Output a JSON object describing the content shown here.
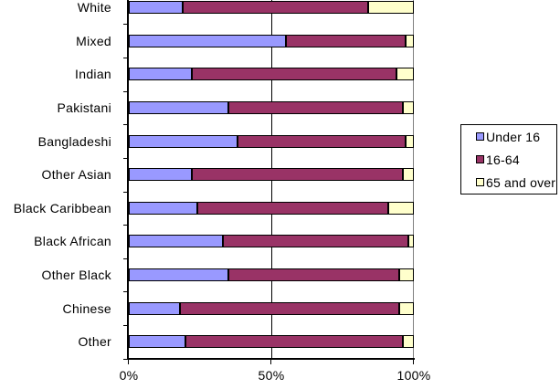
{
  "chart_data": {
    "type": "bar",
    "orientation": "horizontal",
    "stacked": true,
    "categories": [
      "White",
      "Mixed",
      "Indian",
      "Pakistani",
      "Bangladeshi",
      "Other Asian",
      "Black Caribbean",
      "Black African",
      "Other Black",
      "Chinese",
      "Other"
    ],
    "series": [
      {
        "name": "Under 16",
        "color": "#9999FF",
        "values": [
          19,
          55,
          22,
          35,
          38,
          22,
          24,
          33,
          35,
          18,
          20
        ]
      },
      {
        "name": "16-64",
        "color": "#993366",
        "values": [
          65,
          42,
          72,
          61,
          59,
          74,
          67,
          65,
          60,
          77,
          76
        ]
      },
      {
        "name": "65 and over",
        "color": "#FFFFCC",
        "values": [
          16,
          3,
          6,
          4,
          3,
          4,
          9,
          2,
          5,
          5,
          4
        ]
      }
    ],
    "x_ticks": [
      "0%",
      "50%",
      "100%"
    ],
    "x_tick_positions": [
      0,
      50,
      100
    ],
    "x_range": [
      0,
      100
    ],
    "unit": "%",
    "legend_position": "right",
    "gridline_at": 50,
    "colors": {
      "axis": "#000000",
      "gridline": "#000000",
      "plot_border": "#808080",
      "background": "#FFFFFF",
      "segment_border": "#000000"
    }
  }
}
